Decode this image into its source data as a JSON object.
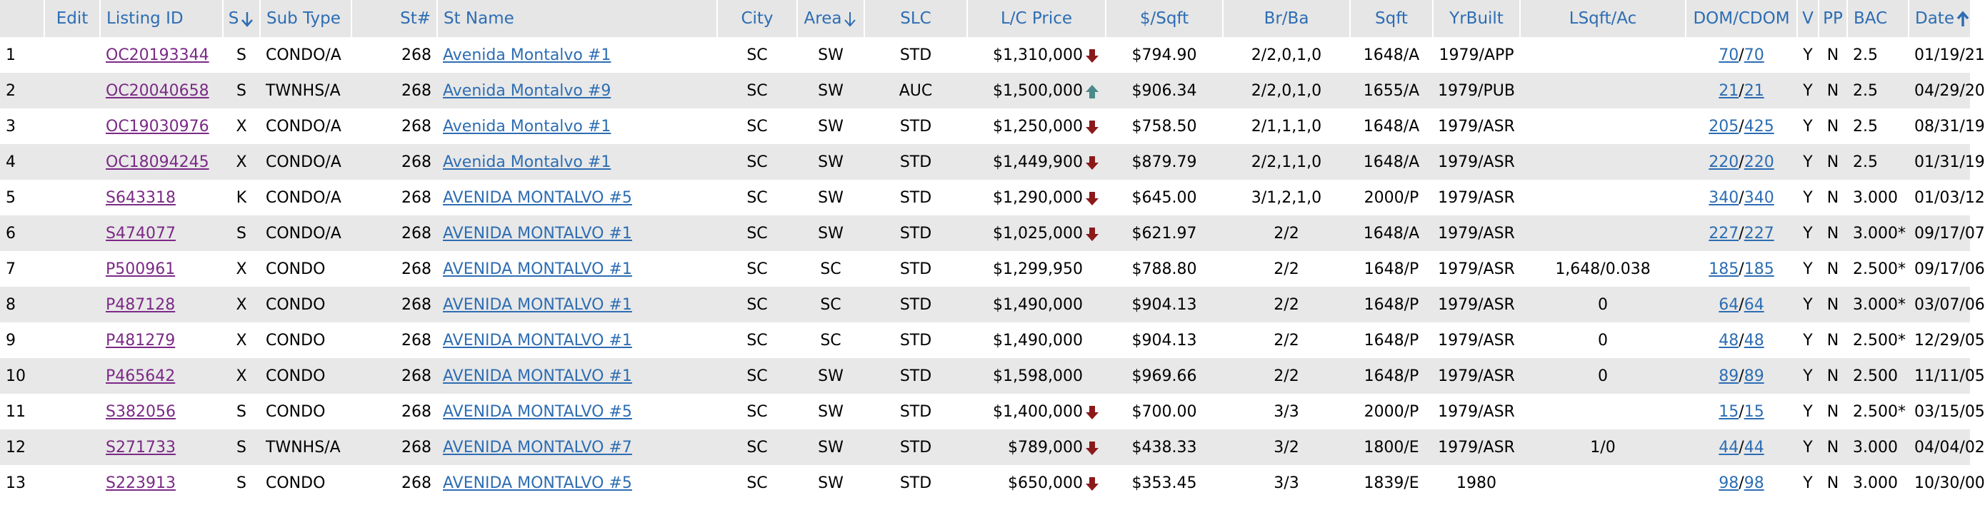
{
  "headers": {
    "num": "",
    "edit": "Edit",
    "listing_id": "Listing ID",
    "s": "S",
    "sub_type": "Sub Type",
    "st_num": "St#",
    "st_name": "St Name",
    "city": "City",
    "area": "Area",
    "slc": "SLC",
    "lc_price": "L/C Price",
    "per_sqft": "$/Sqft",
    "br_ba": "Br/Ba",
    "sqft": "Sqft",
    "yr_built": "YrBuilt",
    "lsqft_ac": "LSqft/Ac",
    "dom_cdom": "DOM/CDOM",
    "v": "V",
    "pp": "PP",
    "bac": "BAC",
    "date": "Date"
  },
  "rows": [
    {
      "num": "1",
      "listing_id": "OC20193344",
      "s": "S",
      "sub_type": "CONDO/A",
      "st_num": "268",
      "st_name": "Avenida Montalvo #1",
      "city": "SC",
      "area": "SW",
      "slc": "STD",
      "price": "$1,310,000",
      "price_trend": "down",
      "per_sqft": "$794.90",
      "br_ba": "2/2,0,1,0",
      "sqft": "1648/A",
      "yr_built": "1979/APP",
      "lsqft": "",
      "dom": "70",
      "cdom": "70",
      "v": "Y",
      "pp": "N",
      "bac": "2.5",
      "date": "01/19/21"
    },
    {
      "num": "2",
      "listing_id": "OC20040658",
      "s": "S",
      "sub_type": "TWNHS/A",
      "st_num": "268",
      "st_name": "Avenida Montalvo #9",
      "city": "SC",
      "area": "SW",
      "slc": "AUC",
      "price": "$1,500,000",
      "price_trend": "up",
      "per_sqft": "$906.34",
      "br_ba": "2/2,0,1,0",
      "sqft": "1655/A",
      "yr_built": "1979/PUB",
      "lsqft": "",
      "dom": "21",
      "cdom": "21",
      "v": "Y",
      "pp": "N",
      "bac": "2.5",
      "date": "04/29/20"
    },
    {
      "num": "3",
      "listing_id": "OC19030976",
      "s": "X",
      "sub_type": "CONDO/A",
      "st_num": "268",
      "st_name": "Avenida Montalvo #1",
      "city": "SC",
      "area": "SW",
      "slc": "STD",
      "price": "$1,250,000",
      "price_trend": "down",
      "per_sqft": "$758.50",
      "br_ba": "2/1,1,1,0",
      "sqft": "1648/A",
      "yr_built": "1979/ASR",
      "lsqft": "",
      "dom": "205",
      "cdom": "425",
      "v": "Y",
      "pp": "N",
      "bac": "2.5",
      "date": "08/31/19"
    },
    {
      "num": "4",
      "listing_id": "OC18094245",
      "s": "X",
      "sub_type": "CONDO/A",
      "st_num": "268",
      "st_name": "Avenida Montalvo #1",
      "city": "SC",
      "area": "SW",
      "slc": "STD",
      "price": "$1,449,900",
      "price_trend": "down",
      "per_sqft": "$879.79",
      "br_ba": "2/2,1,1,0",
      "sqft": "1648/A",
      "yr_built": "1979/ASR",
      "lsqft": "",
      "dom": "220",
      "cdom": "220",
      "v": "Y",
      "pp": "N",
      "bac": "2.5",
      "date": "01/31/19"
    },
    {
      "num": "5",
      "listing_id": "S643318",
      "s": "K",
      "sub_type": "CONDO/A",
      "st_num": "268",
      "st_name": "AVENIDA MONTALVO #5",
      "city": "SC",
      "area": "SW",
      "slc": "STD",
      "price": "$1,290,000",
      "price_trend": "down",
      "per_sqft": "$645.00",
      "br_ba": "3/1,2,1,0",
      "sqft": "2000/P",
      "yr_built": "1979/ASR",
      "lsqft": "",
      "dom": "340",
      "cdom": "340",
      "v": "Y",
      "pp": "N",
      "bac": "3.000",
      "date": "01/03/12"
    },
    {
      "num": "6",
      "listing_id": "S474077",
      "s": "S",
      "sub_type": "CONDO/A",
      "st_num": "268",
      "st_name": "AVENIDA MONTALVO #1",
      "city": "SC",
      "area": "SW",
      "slc": "STD",
      "price": "$1,025,000",
      "price_trend": "down",
      "per_sqft": "$621.97",
      "br_ba": "2/2",
      "sqft": "1648/A",
      "yr_built": "1979/ASR",
      "lsqft": "",
      "dom": "227",
      "cdom": "227",
      "v": "Y",
      "pp": "N",
      "bac": "3.000*",
      "date": "09/17/07"
    },
    {
      "num": "7",
      "listing_id": "P500961",
      "s": "X",
      "sub_type": "CONDO",
      "st_num": "268",
      "st_name": "AVENIDA MONTALVO #1",
      "city": "SC",
      "area": "SC",
      "slc": "STD",
      "price": "$1,299,950",
      "price_trend": "",
      "per_sqft": "$788.80",
      "br_ba": "2/2",
      "sqft": "1648/P",
      "yr_built": "1979/ASR",
      "lsqft": "1,648/0.038",
      "dom": "185",
      "cdom": "185",
      "v": "Y",
      "pp": "N",
      "bac": "2.500*",
      "date": "09/17/06"
    },
    {
      "num": "8",
      "listing_id": "P487128",
      "s": "X",
      "sub_type": "CONDO",
      "st_num": "268",
      "st_name": "AVENIDA MONTALVO #1",
      "city": "SC",
      "area": "SC",
      "slc": "STD",
      "price": "$1,490,000",
      "price_trend": "",
      "per_sqft": "$904.13",
      "br_ba": "2/2",
      "sqft": "1648/P",
      "yr_built": "1979/ASR",
      "lsqft": "0",
      "dom": "64",
      "cdom": "64",
      "v": "Y",
      "pp": "N",
      "bac": "3.000*",
      "date": "03/07/06"
    },
    {
      "num": "9",
      "listing_id": "P481279",
      "s": "X",
      "sub_type": "CONDO",
      "st_num": "268",
      "st_name": "AVENIDA MONTALVO #1",
      "city": "SC",
      "area": "SC",
      "slc": "STD",
      "price": "$1,490,000",
      "price_trend": "",
      "per_sqft": "$904.13",
      "br_ba": "2/2",
      "sqft": "1648/P",
      "yr_built": "1979/ASR",
      "lsqft": "0",
      "dom": "48",
      "cdom": "48",
      "v": "Y",
      "pp": "N",
      "bac": "2.500*",
      "date": "12/29/05"
    },
    {
      "num": "10",
      "listing_id": "P465642",
      "s": "X",
      "sub_type": "CONDO",
      "st_num": "268",
      "st_name": "AVENIDA MONTALVO #1",
      "city": "SC",
      "area": "SW",
      "slc": "STD",
      "price": "$1,598,000",
      "price_trend": "",
      "per_sqft": "$969.66",
      "br_ba": "2/2",
      "sqft": "1648/P",
      "yr_built": "1979/ASR",
      "lsqft": "0",
      "dom": "89",
      "cdom": "89",
      "v": "Y",
      "pp": "N",
      "bac": "2.500",
      "date": "11/11/05"
    },
    {
      "num": "11",
      "listing_id": "S382056",
      "s": "S",
      "sub_type": "CONDO",
      "st_num": "268",
      "st_name": "AVENIDA MONTALVO #5",
      "city": "SC",
      "area": "SW",
      "slc": "STD",
      "price": "$1,400,000",
      "price_trend": "down",
      "per_sqft": "$700.00",
      "br_ba": "3/3",
      "sqft": "2000/P",
      "yr_built": "1979/ASR",
      "lsqft": "",
      "dom": "15",
      "cdom": "15",
      "v": "Y",
      "pp": "N",
      "bac": "2.500*",
      "date": "03/15/05"
    },
    {
      "num": "12",
      "listing_id": "S271733",
      "s": "S",
      "sub_type": "TWNHS/A",
      "st_num": "268",
      "st_name": "AVENIDA MONTALVO #7",
      "city": "SC",
      "area": "SW",
      "slc": "STD",
      "price": "$789,000",
      "price_trend": "down",
      "per_sqft": "$438.33",
      "br_ba": "3/2",
      "sqft": "1800/E",
      "yr_built": "1979/ASR",
      "lsqft": "1/0",
      "dom": "44",
      "cdom": "44",
      "v": "Y",
      "pp": "N",
      "bac": "3.000",
      "date": "04/04/02"
    },
    {
      "num": "13",
      "listing_id": "S223913",
      "s": "S",
      "sub_type": "CONDO",
      "st_num": "268",
      "st_name": "AVENIDA MONTALVO #5",
      "city": "SC",
      "area": "SW",
      "slc": "STD",
      "price": "$650,000",
      "price_trend": "down",
      "per_sqft": "$353.45",
      "br_ba": "3/3",
      "sqft": "1839/E",
      "yr_built": "1980",
      "lsqft": "",
      "dom": "98",
      "cdom": "98",
      "v": "Y",
      "pp": "N",
      "bac": "3.000",
      "date": "10/30/00"
    }
  ],
  "colors": {
    "header_bg": "#e6e6e6",
    "header_text": "#2d6db3",
    "row_alt_bg": "#e8e8e8",
    "listing_link": "#7b2a86",
    "street_link": "#2d6db3",
    "price_down_arrow": "#8b1a1a",
    "price_up_arrow": "#4a8a8a"
  },
  "icons": {
    "sort_desc": "arrow-down-sort-icon",
    "sort_asc": "arrow-up-sort-icon",
    "price_down": "price-down-arrow-icon",
    "price_up": "price-up-arrow-icon"
  }
}
